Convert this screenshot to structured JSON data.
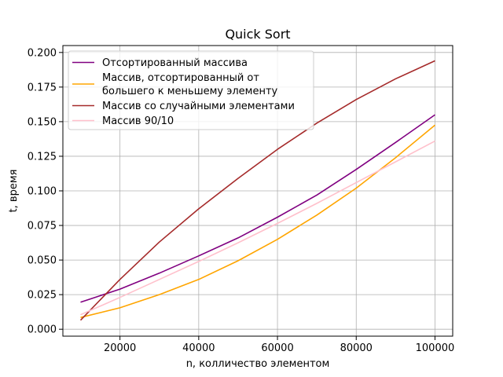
{
  "chart_data": {
    "type": "line",
    "title": "Quick Sort",
    "xlabel": "n, колличество элементом",
    "ylabel": "t, время",
    "xlim": [
      5500,
      104500
    ],
    "ylim": [
      -0.005,
      0.205
    ],
    "xticks": [
      20000,
      40000,
      60000,
      80000,
      100000
    ],
    "xtick_labels": [
      "20000",
      "40000",
      "60000",
      "80000",
      "100000"
    ],
    "yticks": [
      0.0,
      0.025,
      0.05,
      0.075,
      0.1,
      0.125,
      0.15,
      0.175,
      0.2
    ],
    "ytick_labels": [
      "0.000",
      "0.025",
      "0.050",
      "0.075",
      "0.100",
      "0.125",
      "0.150",
      "0.175",
      "0.200"
    ],
    "grid": true,
    "legend_position": "top-left",
    "x": [
      10000,
      20000,
      30000,
      40000,
      50000,
      60000,
      70000,
      80000,
      90000,
      100000
    ],
    "series": [
      {
        "name": "Отсортированный массива",
        "color": "#800080",
        "values": [
          0.0195,
          0.029,
          0.0405,
          0.053,
          0.066,
          0.081,
          0.097,
          0.1155,
          0.135,
          0.155
        ]
      },
      {
        "name": "Массив, отсортированный от\nбольшего к меньшему элементу",
        "color": "#ffa500",
        "values": [
          0.0085,
          0.0155,
          0.025,
          0.036,
          0.0495,
          0.065,
          0.0825,
          0.102,
          0.124,
          0.1475
        ]
      },
      {
        "name": "Массив со случайными элементами",
        "color": "#a52a2a",
        "values": [
          0.0065,
          0.036,
          0.063,
          0.087,
          0.109,
          0.13,
          0.149,
          0.166,
          0.181,
          0.194
        ]
      },
      {
        "name": "Массив 90/10",
        "color": "#ffc0cb",
        "values": [
          0.0105,
          0.023,
          0.036,
          0.049,
          0.0625,
          0.0765,
          0.091,
          0.106,
          0.121,
          0.136
        ]
      }
    ]
  }
}
